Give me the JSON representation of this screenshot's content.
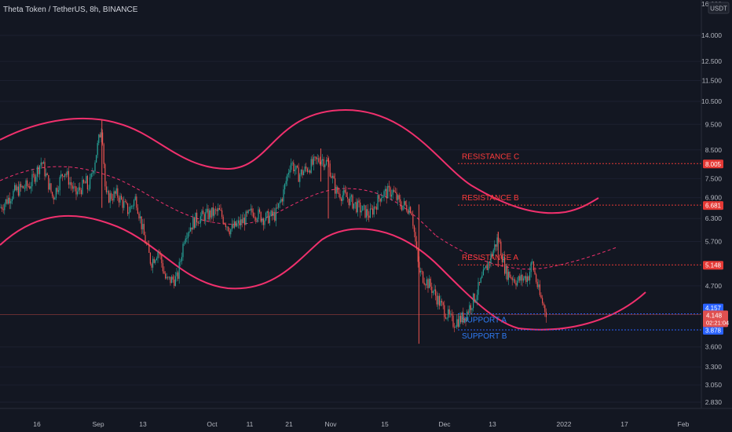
{
  "header": {
    "title": "Theta Token / TetherUS, 8h, BINANCE"
  },
  "axis": {
    "currency_badge": "USDT",
    "top_tick": "16.000"
  },
  "colors": {
    "background": "#131722",
    "up": "#26a69a",
    "down": "#ef5350",
    "channel": "#f0306d",
    "resistance_text": "#ff3b3b",
    "support_text": "#2f7bf5",
    "axis_text": "#b2b5be"
  },
  "chart_data": {
    "type": "candlestick",
    "title": "Theta Token / TetherUS, 8h, BINANCE",
    "y_scale": "log",
    "y_ticks": [
      "14.000",
      "12.500",
      "11.500",
      "10.500",
      "9.500",
      "8.500",
      "7.500",
      "6.900",
      "6.300",
      "5.700",
      "4.700",
      "3.600",
      "3.300",
      "3.050",
      "2.830"
    ],
    "x_ticks": [
      "16",
      "Sep",
      "13",
      "Oct",
      "11",
      "21",
      "Nov",
      "15",
      "Dec",
      "13",
      "2022",
      "17",
      "Feb"
    ],
    "levels": [
      {
        "name": "RESISTANCE C",
        "value": 8.005,
        "label": "8.005",
        "kind": "resistance"
      },
      {
        "name": "RESISTANCE B",
        "value": 6.681,
        "label": "6.681",
        "kind": "resistance"
      },
      {
        "name": "RESISTANCE A",
        "value": 5.148,
        "label": "5.148",
        "kind": "resistance"
      },
      {
        "name": "SUPPORT A",
        "value": 4.157,
        "label": "4.157",
        "kind": "support"
      },
      {
        "name": "SUPPORT B",
        "value": 3.878,
        "label": "3.878",
        "kind": "support"
      }
    ],
    "last_price": {
      "value": 4.148,
      "label": "4.148",
      "countdown": "02:21:04"
    },
    "price_path": [
      {
        "x": "Aug 08",
        "y": 6.6
      },
      {
        "x": "Aug 12",
        "y": 7.1
      },
      {
        "x": "Aug 16",
        "y": 7.3
      },
      {
        "x": "Aug 19",
        "y": 8.1
      },
      {
        "x": "Aug 22",
        "y": 6.9
      },
      {
        "x": "Aug 25",
        "y": 7.8
      },
      {
        "x": "Aug 28",
        "y": 7.0
      },
      {
        "x": "Aug 31",
        "y": 7.4
      },
      {
        "x": "Sep 02",
        "y": 6.6
      },
      {
        "x": "Sep 05",
        "y": 6.7
      },
      {
        "x": "Sep 08",
        "y": 7.4
      },
      {
        "x": "Sep 11",
        "y": 9.5
      },
      {
        "x": "Sep 12",
        "y": 6.9
      },
      {
        "x": "Sep 15",
        "y": 7.0
      },
      {
        "x": "Sep 18",
        "y": 6.5
      },
      {
        "x": "Sep 20",
        "y": 6.9
      },
      {
        "x": "Sep 22",
        "y": 5.9
      },
      {
        "x": "Sep 24",
        "y": 5.2
      },
      {
        "x": "Sep 26",
        "y": 5.5
      },
      {
        "x": "Sep 28",
        "y": 4.8
      },
      {
        "x": "Oct 01",
        "y": 4.85
      },
      {
        "x": "Oct 03",
        "y": 5.9
      },
      {
        "x": "Oct 06",
        "y": 6.3
      },
      {
        "x": "Oct 09",
        "y": 6.4
      },
      {
        "x": "Oct 12",
        "y": 6.5
      },
      {
        "x": "Oct 15",
        "y": 6.0
      },
      {
        "x": "Oct 18",
        "y": 6.2
      },
      {
        "x": "Oct 21",
        "y": 6.5
      },
      {
        "x": "Oct 24",
        "y": 6.3
      },
      {
        "x": "Oct 27",
        "y": 6.4
      },
      {
        "x": "Oct 29",
        "y": 7.0
      },
      {
        "x": "Oct 31",
        "y": 8.1
      },
      {
        "x": "Nov 02",
        "y": 7.6
      },
      {
        "x": "Nov 05",
        "y": 7.9
      },
      {
        "x": "Nov 08",
        "y": 8.2
      },
      {
        "x": "Nov 10",
        "y": 8.0
      },
      {
        "x": "Nov 12",
        "y": 7.1
      },
      {
        "x": "Nov 15",
        "y": 6.9
      },
      {
        "x": "Nov 18",
        "y": 6.6
      },
      {
        "x": "Nov 21",
        "y": 6.4
      },
      {
        "x": "Nov 24",
        "y": 7.0
      },
      {
        "x": "Nov 27",
        "y": 7.1
      },
      {
        "x": "Nov 29",
        "y": 6.7
      },
      {
        "x": "Dec 02",
        "y": 6.6
      },
      {
        "x": "Dec 04",
        "y": 5.0
      },
      {
        "x": "Dec 07",
        "y": 4.7
      },
      {
        "x": "Dec 10",
        "y": 4.3
      },
      {
        "x": "Dec 13",
        "y": 4.0
      },
      {
        "x": "Dec 16",
        "y": 4.1
      },
      {
        "x": "Dec 19",
        "y": 4.5
      },
      {
        "x": "Dec 22",
        "y": 5.1
      },
      {
        "x": "Dec 25",
        "y": 5.8
      },
      {
        "x": "Dec 27",
        "y": 5.0
      },
      {
        "x": "Dec 30",
        "y": 4.8
      },
      {
        "x": "Jan 02",
        "y": 4.9
      },
      {
        "x": "Jan 03",
        "y": 5.2
      },
      {
        "x": "Jan 05",
        "y": 4.5
      },
      {
        "x": "Jan 07",
        "y": 4.148
      }
    ],
    "grid": false
  }
}
